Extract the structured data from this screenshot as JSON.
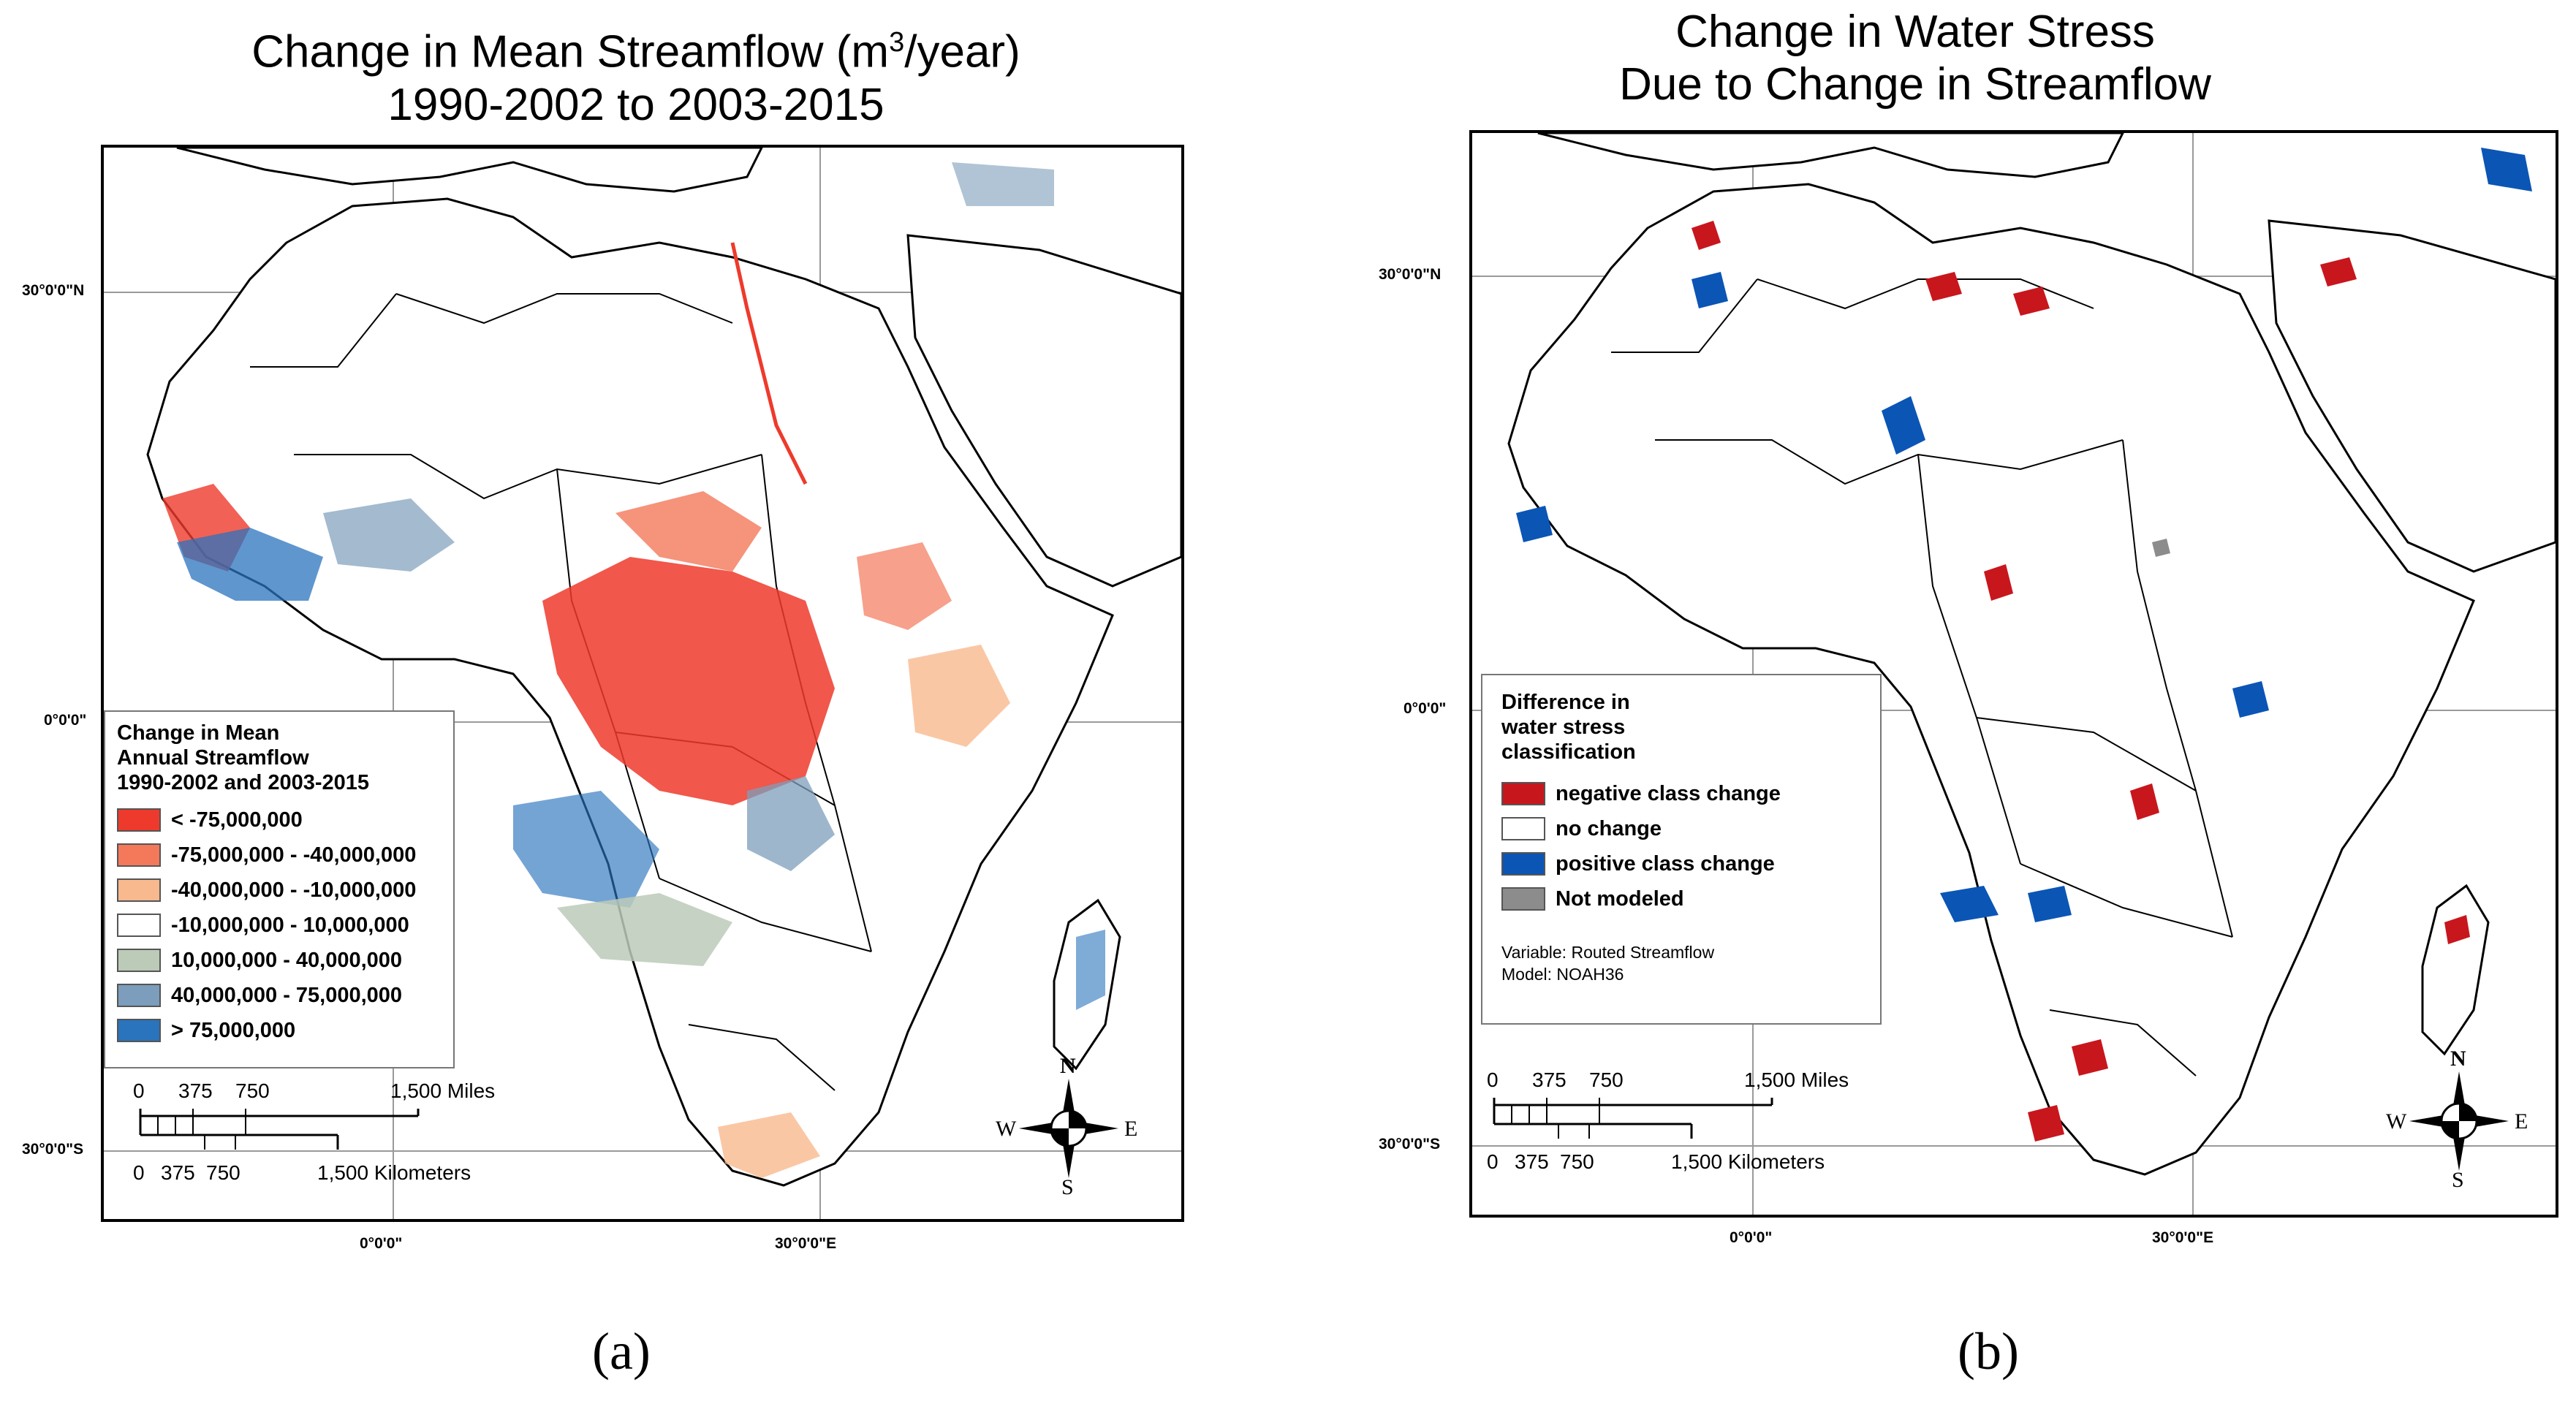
{
  "panel_a": {
    "title_line1": "Change in Mean Streamflow (m",
    "title_sup": "3",
    "title_line1_end": "/year)",
    "title_line2": "1990-2002 to 2003-2015",
    "lat_30n": "30°0'0\"N",
    "lat_0": "0°0'0\"",
    "lat_30s": "30°0'0\"S",
    "lon_0": "0°0'0\"",
    "lon_30e": "30°0'0\"E",
    "legend": {
      "title_lines": [
        "Change in Mean",
        "Annual Streamflow",
        "1990-2002 and 2003-2015"
      ],
      "items": [
        {
          "label": "< -75,000,000",
          "color": "#ee3a2c"
        },
        {
          "label": "-75,000,000 - -40,000,000",
          "color": "#f4785a"
        },
        {
          "label": "-40,000,000 - -10,000,000",
          "color": "#f9b98e"
        },
        {
          "label": "-10,000,000 - 10,000,000",
          "color": "#ffffff"
        },
        {
          "label": "10,000,000 - 40,000,000",
          "color": "#bccab8"
        },
        {
          "label": "40,000,000 - 75,000,000",
          "color": "#7c9dbb"
        },
        {
          "label": "> 75,000,000",
          "color": "#2a73bd"
        }
      ]
    },
    "scale": {
      "miles_ticks": [
        "0",
        "375",
        "750",
        "1,500 Miles"
      ],
      "km_ticks": [
        "0",
        "375",
        "750",
        "1,500 Kilometers"
      ]
    },
    "compass": {
      "n": "N",
      "s": "S",
      "e": "E",
      "w": "W"
    },
    "panel_label": "(a)"
  },
  "panel_b": {
    "title_line1": "Change in Water Stress",
    "title_line2": "Due to Change in Streamflow",
    "lat_30n": "30°0'0\"N",
    "lat_0": "0°0'0\"",
    "lat_30s": "30°0'0\"S",
    "lon_0": "0°0'0\"",
    "lon_30e": "30°0'0\"E",
    "legend": {
      "title_lines": [
        "Difference in",
        "water stress",
        "classification"
      ],
      "items": [
        {
          "label": "negative class change",
          "color": "#c8161d"
        },
        {
          "label": "no change",
          "color": "#ffffff"
        },
        {
          "label": "positive class change",
          "color": "#0b55b5"
        },
        {
          "label": "Not modeled",
          "color": "#8c8c8c"
        }
      ],
      "note_variable": "Variable: Routed Streamflow",
      "note_model": "Model: NOAH36"
    },
    "scale": {
      "miles_ticks": [
        "0",
        "375",
        "750",
        "1,500 Miles"
      ],
      "km_ticks": [
        "0",
        "375",
        "750",
        "1,500 Kilometers"
      ]
    },
    "compass": {
      "n": "N",
      "s": "S",
      "e": "E",
      "w": "W"
    },
    "panel_label": "(b)"
  }
}
